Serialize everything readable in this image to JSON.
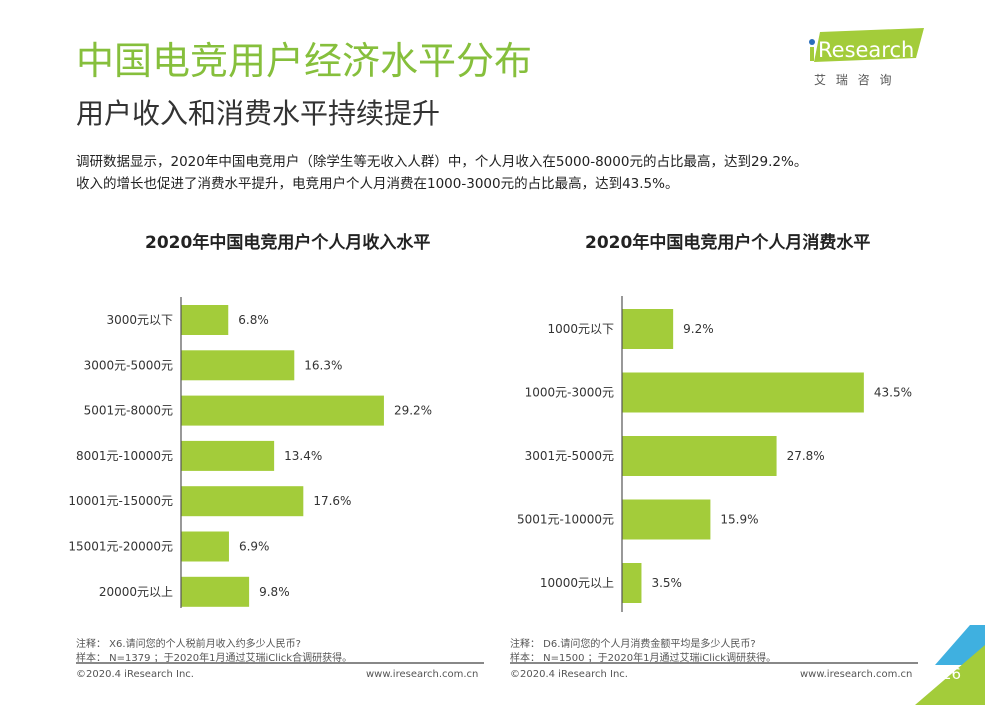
{
  "header": {
    "title": "中国电竞用户经济水平分布",
    "subtitle": "用户收入和消费水平持续提升",
    "description": [
      "调研数据显示，2020年中国电竞用户（除学生等无收入人群）中，个人月收入在5000-8000元的占比最高，达到29.2%。",
      "收入的增长也促进了消费水平提升，电竞用户个人月消费在1000-3000元的占比最高，达到43.5%。"
    ]
  },
  "logo": {
    "brand": "iResearch",
    "cn": "艾 瑞 咨 询"
  },
  "colors": {
    "bar": "#a3cc3a",
    "title": "#86bf3c",
    "accent_blue": "#3fb0e0"
  },
  "chart_data": [
    {
      "type": "bar",
      "orientation": "horizontal",
      "title": "2020年中国电竞用户个人月收入水平",
      "categories": [
        "3000元以下",
        "3000元-5000元",
        "5001元-8000元",
        "8001元-10000元",
        "10001元-15000元",
        "15001元-20000元",
        "20000元以上"
      ],
      "values": [
        6.8,
        16.3,
        29.2,
        13.4,
        17.6,
        6.9,
        9.8
      ],
      "labels": [
        "6.8%",
        "16.3%",
        "29.2%",
        "13.4%",
        "17.6%",
        "6.9%",
        "9.8%"
      ],
      "unit": "%"
    },
    {
      "type": "bar",
      "orientation": "horizontal",
      "title": "2020年中国电竞用户个人月消费水平",
      "categories": [
        "1000元以下",
        "1000元-3000元",
        "3001元-5000元",
        "5001元-10000元",
        "10000元以上"
      ],
      "values": [
        9.2,
        43.5,
        27.8,
        15.9,
        3.5
      ],
      "labels": [
        "9.2%",
        "43.5%",
        "27.8%",
        "15.9%",
        "3.5%"
      ],
      "unit": "%"
    }
  ],
  "notes": {
    "left": {
      "note": "注释：  X6.请问您的个人税前月收入约多少人民币?",
      "sample": "样本：  N=1379 ；于2020年1月通过艾瑞iClick合调研获得。"
    },
    "right": {
      "note": "注释：  D6.请问您的个人月消费金额平均是多少人民币?",
      "sample": "样本：  N=1500 ；于2020年1月通过艾瑞iClick调研获得。"
    }
  },
  "footer": {
    "copyright": "©2020.4 iResearch Inc.",
    "url": "www.iresearch.com.cn",
    "page": "26"
  }
}
